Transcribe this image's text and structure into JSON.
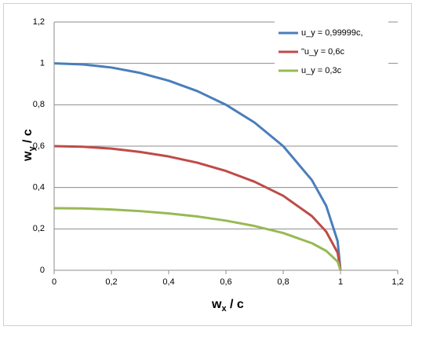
{
  "chart_data": {
    "type": "line",
    "x_label": {
      "base": "w",
      "sub": "x",
      "rest": " / c"
    },
    "y_label": {
      "base": "w",
      "sub": "y",
      "rest": " / c"
    },
    "x": [
      0,
      0.1,
      0.2,
      0.3,
      0.4,
      0.5,
      0.6,
      0.7,
      0.8,
      0.9,
      0.95,
      0.99,
      1
    ],
    "series": [
      {
        "name": "u_y = 0,99999c,",
        "color": "#4a7ebb",
        "values": [
          1,
          0.995,
          0.98,
          0.954,
          0.9165,
          0.866,
          0.8,
          0.714,
          0.6,
          0.436,
          0.312,
          0.141,
          0
        ]
      },
      {
        "name": "\"u_y = 0,6c",
        "color": "#be4b48",
        "values": [
          0.6,
          0.597,
          0.588,
          0.572,
          0.55,
          0.52,
          0.48,
          0.428,
          0.36,
          0.262,
          0.187,
          0.085,
          0
        ]
      },
      {
        "name": "u_y = 0,3c",
        "color": "#98b954",
        "values": [
          0.3,
          0.299,
          0.294,
          0.286,
          0.275,
          0.26,
          0.24,
          0.214,
          0.18,
          0.131,
          0.094,
          0.042,
          0
        ]
      }
    ],
    "xlim": [
      0,
      1.2
    ],
    "xticks": [
      0,
      {
        "value": 0.2,
        "label": "0,2"
      },
      {
        "value": 0.4,
        "label": "0,4"
      },
      {
        "value": 0.6,
        "label": "0,6"
      },
      {
        "value": 0.8,
        "label": "0,8"
      },
      1,
      {
        "value": 1.2,
        "label": "1,2"
      }
    ],
    "ylim": [
      0,
      1.2
    ],
    "yticks": [
      0,
      {
        "value": 0.2,
        "label": "0,2"
      },
      {
        "value": 0.4,
        "label": "0,4"
      },
      {
        "value": 0.6,
        "label": "0,6"
      },
      {
        "value": 0.8,
        "label": "0,8"
      },
      1,
      {
        "value": 1.2,
        "label": "1,2"
      }
    ],
    "grid": true,
    "legend": "top-right"
  }
}
